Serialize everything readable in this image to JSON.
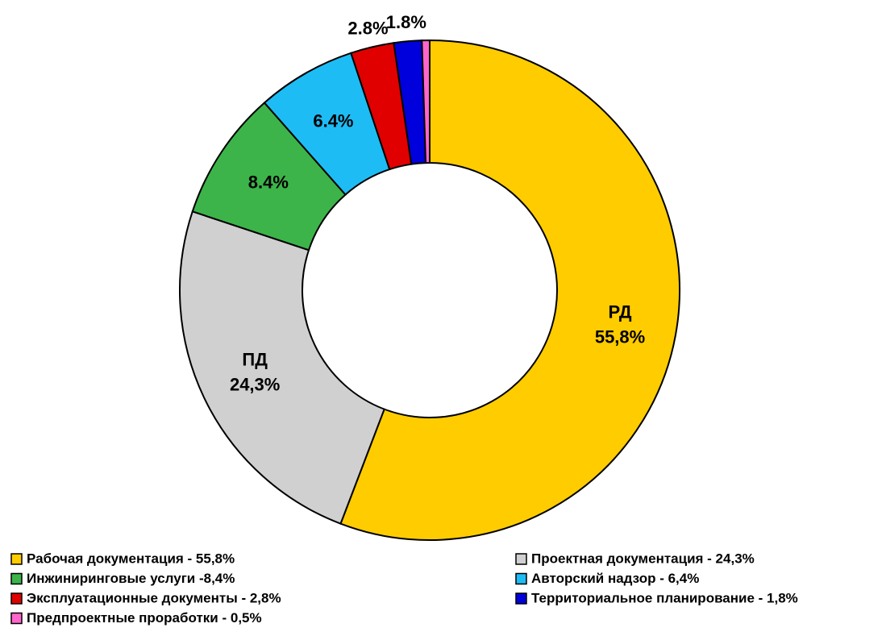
{
  "chart_data": {
    "type": "donut",
    "categories": [
      "Рабочая документация - 55,8%",
      "Проектная документация - 24,3%",
      "Инжиниринговые услуги -8,4%",
      "Авторский надзор - 6,4%",
      "Эксплуатационные документы - 2,8%",
      "Территориальное планирование - 1,8%",
      "Предпроектные проработки - 0,5%"
    ],
    "short_labels": [
      "РД",
      "ПД",
      null,
      null,
      null,
      null,
      null
    ],
    "values": [
      55.8,
      24.3,
      8.4,
      6.4,
      2.8,
      1.8,
      0.5
    ],
    "value_labels": [
      "55,8%",
      "24,3%",
      "8.4%",
      "6.4%",
      "2.8%",
      "1.8%",
      null
    ],
    "colors": [
      "#FFCC00",
      "#D0D0D0",
      "#3CB44A",
      "#1EBCF5",
      "#E00000",
      "#0000DD",
      "#FF66CC"
    ],
    "legend": "bottom"
  }
}
